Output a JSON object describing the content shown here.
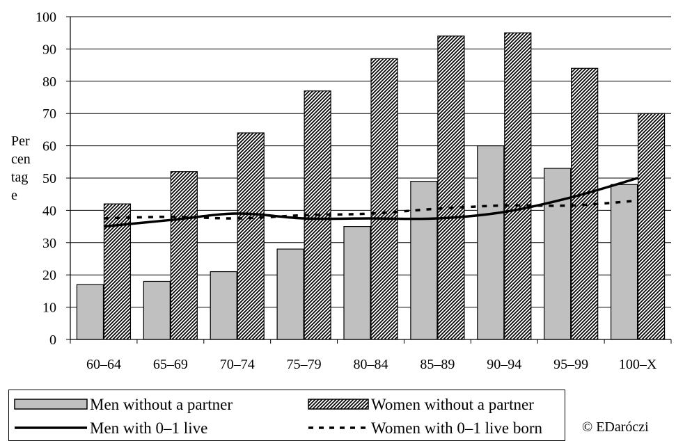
{
  "chart_data": {
    "type": "bar",
    "categories": [
      "60–64",
      "65–69",
      "70–74",
      "75–79",
      "80–84",
      "85–89",
      "90–94",
      "95–99",
      "100–X"
    ],
    "series": [
      {
        "name": "Men without a partner",
        "kind": "bar",
        "style": "solid-gray",
        "values": [
          17,
          18,
          21,
          28,
          35,
          49,
          60,
          53,
          48
        ]
      },
      {
        "name": "Women without a partner",
        "kind": "bar",
        "style": "hatched",
        "values": [
          42,
          52,
          64,
          77,
          87,
          94,
          95,
          84,
          70
        ]
      },
      {
        "name": "Men with 0–1 live",
        "kind": "line",
        "style": "solid",
        "values": [
          35,
          37,
          39,
          37.5,
          37.5,
          37.5,
          39.5,
          44,
          50
        ]
      },
      {
        "name": "Women with 0–1 live born",
        "kind": "line",
        "style": "dashed",
        "values": [
          37.5,
          38,
          37.5,
          38.5,
          39,
          40.5,
          41.5,
          41.5,
          43
        ]
      }
    ],
    "ylabel": "Per cen tag e",
    "ylabel_lines": [
      "Per",
      "cen",
      "tag",
      "e"
    ],
    "ylim": [
      0,
      100
    ],
    "yticks": [
      0,
      10,
      20,
      30,
      40,
      50,
      60,
      70,
      80,
      90,
      100
    ],
    "grid": true,
    "legend_position": "bottom",
    "colors": {
      "men_bar": "#c0c0c0",
      "hatch": "#000000",
      "line": "#000000"
    }
  },
  "legend": {
    "men_without_partner": "Men without a partner",
    "women_without_partner": "Women without a partner",
    "men_with_live": "Men with 0–1 live",
    "women_with_live": "Women with 0–1 live born"
  },
  "copyright": "© EDaróczi"
}
